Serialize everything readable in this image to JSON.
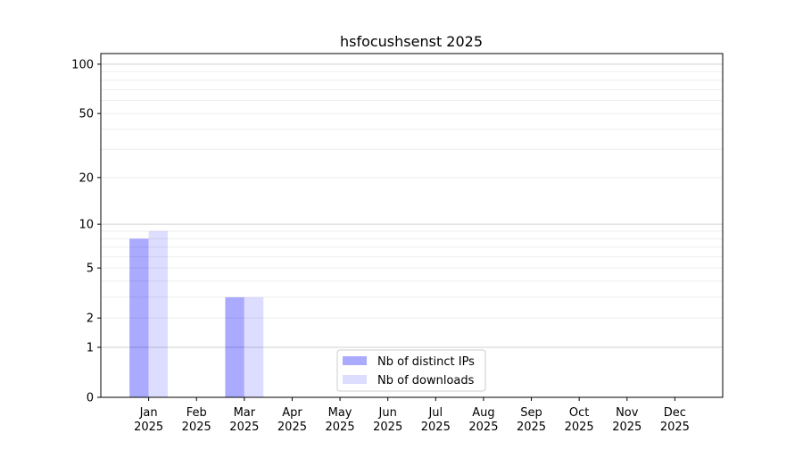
{
  "chart_data": {
    "type": "bar",
    "title": "hsfocushsenst 2025",
    "xlabel": "",
    "ylabel": "",
    "yscale": "symlog",
    "ylim": [
      0,
      116
    ],
    "yticks": [
      0,
      1,
      2,
      5,
      10,
      20,
      50,
      100
    ],
    "ytick_labels": [
      "0",
      "1",
      "2",
      "5",
      "10",
      "20",
      "50",
      "100"
    ],
    "grid": true,
    "legend_position": "bottom-center",
    "categories": [
      "Jan\n2025",
      "Feb\n2025",
      "Mar\n2025",
      "Apr\n2025",
      "May\n2025",
      "Jun\n2025",
      "Jul\n2025",
      "Aug\n2025",
      "Sep\n2025",
      "Oct\n2025",
      "Nov\n2025",
      "Dec\n2025"
    ],
    "category_months": [
      "Jan",
      "Feb",
      "Mar",
      "Apr",
      "May",
      "Jun",
      "Jul",
      "Aug",
      "Sep",
      "Oct",
      "Nov",
      "Dec"
    ],
    "category_year": "2025",
    "series": [
      {
        "name": "Nb of distinct IPs",
        "color": "#aaaaff",
        "values": [
          8,
          0,
          3,
          0,
          0,
          0,
          0,
          0,
          0,
          0,
          0,
          0
        ]
      },
      {
        "name": "Nb of downloads",
        "color": "#ddddff",
        "values": [
          9,
          0,
          3,
          0,
          0,
          0,
          0,
          0,
          0,
          0,
          0,
          0
        ]
      }
    ]
  }
}
